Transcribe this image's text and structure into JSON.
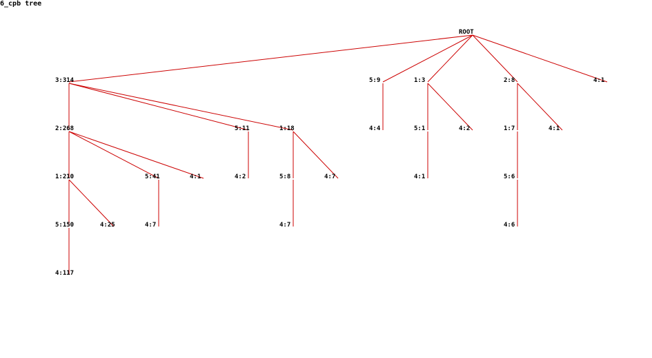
{
  "title": "6_cpb tree",
  "colors": {
    "edge": "#cc0000",
    "label": "#000000"
  },
  "tree": {
    "label": "ROOT",
    "children": [
      {
        "label": "3:314",
        "children": [
          {
            "label": "2:268",
            "children": [
              {
                "label": "1:210",
                "children": [
                  {
                    "label": "5:150",
                    "children": [
                      {
                        "label": "4:117",
                        "children": []
                      }
                    ]
                  },
                  {
                    "label": "4:25",
                    "children": []
                  }
                ]
              },
              {
                "label": "5:41",
                "children": [
                  {
                    "label": "4:7",
                    "children": []
                  }
                ]
              },
              {
                "label": "4:1",
                "children": []
              }
            ]
          },
          {
            "label": "5:11",
            "children": [
              {
                "label": "4:2",
                "children": []
              }
            ]
          },
          {
            "label": "1:18",
            "children": [
              {
                "label": "5:8",
                "children": [
                  {
                    "label": "4:7",
                    "children": []
                  }
                ]
              },
              {
                "label": "4:7",
                "children": []
              }
            ]
          }
        ]
      },
      {
        "label": "5:9",
        "children": [
          {
            "label": "4:4",
            "children": []
          }
        ]
      },
      {
        "label": "1:3",
        "children": [
          {
            "label": "5:1",
            "children": [
              {
                "label": "4:1",
                "children": []
              }
            ]
          },
          {
            "label": "4:2",
            "children": []
          }
        ]
      },
      {
        "label": "2:8",
        "children": [
          {
            "label": "1:7",
            "children": [
              {
                "label": "5:6",
                "children": [
                  {
                    "label": "4:6",
                    "children": []
                  }
                ]
              }
            ]
          },
          {
            "label": "4:1",
            "children": []
          }
        ]
      },
      {
        "label": "4:1",
        "children": []
      }
    ]
  }
}
